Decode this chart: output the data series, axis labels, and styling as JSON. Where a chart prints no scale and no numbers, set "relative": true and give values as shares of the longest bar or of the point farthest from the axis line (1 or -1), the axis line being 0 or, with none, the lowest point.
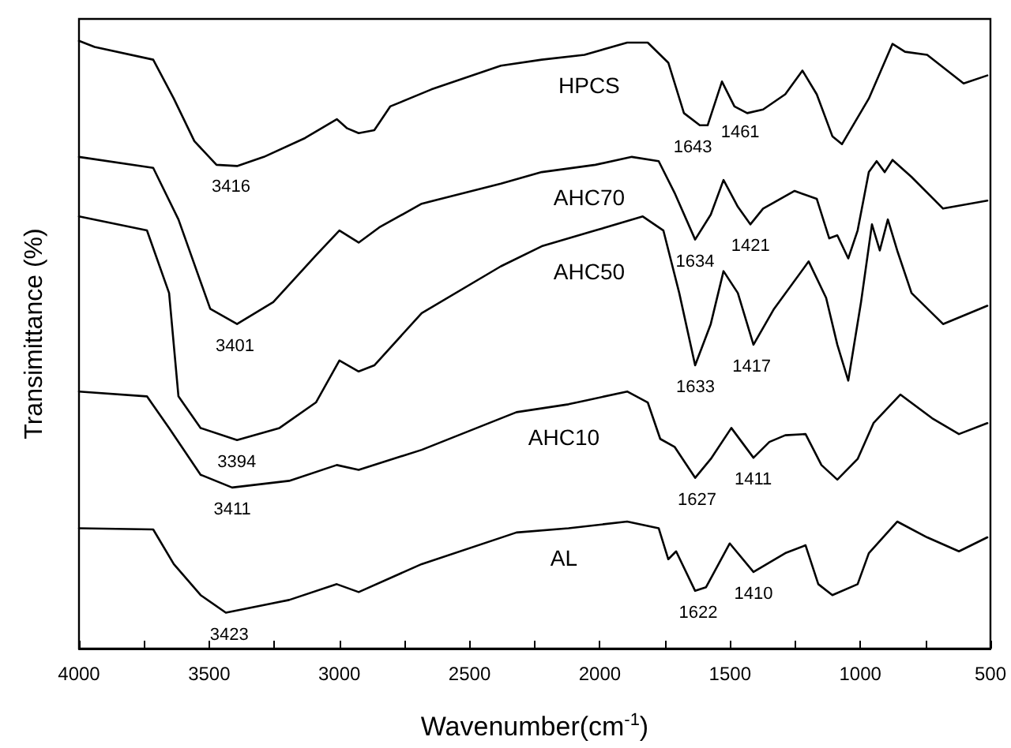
{
  "chart_data": {
    "type": "line",
    "relative": true,
    "xlabel": "Wavenumber(cm$^{-1}$)",
    "ylabel": "Transimittance (%)",
    "xlim": [
      4000,
      500
    ],
    "xticks": [
      4000,
      {
        "value": 3750,
        "label": null
      },
      3500,
      {
        "value": 3250,
        "label": null
      },
      3000,
      {
        "value": 2750,
        "label": null
      },
      2500,
      {
        "value": 2250,
        "label": null
      },
      2000,
      {
        "value": 1750,
        "label": null
      },
      1500,
      {
        "value": 1250,
        "label": null
      },
      1000,
      {
        "value": 750,
        "label": null
      },
      500
    ],
    "grid": false,
    "legend": false,
    "marker": "none",
    "line_style": "solid",
    "series": [
      {
        "name": "HPCS",
        "color": "#000000",
        "x": [
          4000,
          3940,
          3715,
          3636,
          3557,
          3472,
          3393,
          3290,
          3132,
          3010,
          2970,
          2926,
          2866,
          2805,
          2647,
          2380,
          2223,
          2059,
          1895,
          1816,
          1737,
          1677,
          1616,
          1586,
          1531,
          1483,
          1434,
          1373,
          1288,
          1222,
          1167,
          1107,
          1070,
          967,
          876,
          828,
          743,
          603,
          512
        ],
        "values": [
          1,
          0.99,
          0.969,
          0.905,
          0.835,
          0.796,
          0.794,
          0.809,
          0.84,
          0.871,
          0.856,
          0.848,
          0.853,
          0.892,
          0.92,
          0.959,
          0.969,
          0.977,
          0.997,
          0.997,
          0.964,
          0.881,
          0.861,
          0.861,
          0.933,
          0.892,
          0.881,
          0.887,
          0.912,
          0.951,
          0.912,
          0.843,
          0.83,
          0.905,
          0.995,
          0.982,
          0.977,
          0.93,
          0.943
        ]
      },
      {
        "name": "AHC70",
        "color": "#000000",
        "x": [
          4000,
          3715,
          3618,
          3496,
          3393,
          3254,
          3090,
          3000,
          2926,
          2847,
          2684,
          2380,
          2223,
          2017,
          1877,
          1774,
          1713,
          1634,
          1574,
          1525,
          1470,
          1422,
          1373,
          1252,
          1167,
          1119,
          1088,
          1046,
          1010,
          967,
          937,
          906,
          876,
          803,
          682,
          512
        ],
        "values": [
          0.809,
          0.791,
          0.706,
          0.559,
          0.534,
          0.57,
          0.647,
          0.688,
          0.668,
          0.693,
          0.732,
          0.765,
          0.784,
          0.796,
          0.809,
          0.802,
          0.75,
          0.673,
          0.714,
          0.771,
          0.727,
          0.698,
          0.724,
          0.753,
          0.74,
          0.675,
          0.68,
          0.642,
          0.688,
          0.784,
          0.802,
          0.784,
          0.804,
          0.776,
          0.724,
          0.737
        ]
      },
      {
        "name": "AHC50",
        "color": "#000000",
        "x": [
          4000,
          3739,
          3654,
          3618,
          3533,
          3393,
          3230,
          3090,
          3000,
          2926,
          2866,
          2684,
          2380,
          2223,
          2017,
          1835,
          1756,
          1695,
          1634,
          1574,
          1525,
          1470,
          1410,
          1331,
          1198,
          1131,
          1088,
          1046,
          997,
          955,
          925,
          894,
          858,
          803,
          682,
          512
        ],
        "values": [
          0.711,
          0.688,
          0.585,
          0.415,
          0.363,
          0.343,
          0.363,
          0.405,
          0.474,
          0.456,
          0.466,
          0.552,
          0.629,
          0.662,
          0.688,
          0.711,
          0.688,
          0.585,
          0.466,
          0.534,
          0.621,
          0.585,
          0.5,
          0.559,
          0.637,
          0.577,
          0.5,
          0.441,
          0.57,
          0.698,
          0.655,
          0.706,
          0.655,
          0.585,
          0.534,
          0.564
        ]
      },
      {
        "name": "AHC10",
        "color": "#000000",
        "x": [
          4000,
          3739,
          3654,
          3533,
          3412,
          3193,
          3010,
          2926,
          2684,
          2320,
          2120,
          1895,
          1816,
          1768,
          1713,
          1634,
          1574,
          1495,
          1410,
          1349,
          1288,
          1210,
          1149,
          1088,
          1010,
          949,
          846,
          724,
          621,
          512
        ],
        "values": [
          0.423,
          0.415,
          0.363,
          0.286,
          0.265,
          0.276,
          0.302,
          0.294,
          0.327,
          0.389,
          0.402,
          0.423,
          0.405,
          0.345,
          0.332,
          0.281,
          0.312,
          0.363,
          0.314,
          0.34,
          0.351,
          0.353,
          0.302,
          0.278,
          0.312,
          0.371,
          0.418,
          0.379,
          0.353,
          0.371
        ]
      },
      {
        "name": "AL",
        "color": "#000000",
        "x": [
          4000,
          3715,
          3636,
          3533,
          3436,
          3193,
          3010,
          2926,
          2684,
          2320,
          2120,
          1895,
          1774,
          1737,
          1707,
          1634,
          1592,
          1501,
          1410,
          1288,
          1210,
          1161,
          1107,
          1010,
          967,
          858,
          743,
          621,
          512
        ],
        "values": [
          0.198,
          0.196,
          0.139,
          0.088,
          0.059,
          0.08,
          0.106,
          0.093,
          0.139,
          0.191,
          0.198,
          0.209,
          0.198,
          0.147,
          0.16,
          0.095,
          0.101,
          0.173,
          0.126,
          0.157,
          0.17,
          0.106,
          0.088,
          0.106,
          0.157,
          0.209,
          0.183,
          0.16,
          0.183
        ]
      }
    ],
    "annotations": [
      {
        "text": "3416",
        "x": 3416,
        "y": 0.796
      },
      {
        "text": "1643",
        "x": 1643,
        "y": 0.861
      },
      {
        "text": "1461",
        "x": 1461,
        "y": 0.885
      },
      {
        "text": "3401",
        "x": 3401,
        "y": 0.534
      },
      {
        "text": "1634",
        "x": 1634,
        "y": 0.673
      },
      {
        "text": "1421",
        "x": 1421,
        "y": 0.698
      },
      {
        "text": "3394",
        "x": 3394,
        "y": 0.343
      },
      {
        "text": "1633",
        "x": 1633,
        "y": 0.466
      },
      {
        "text": "1417",
        "x": 1417,
        "y": 0.5
      },
      {
        "text": "3411",
        "x": 3411,
        "y": 0.265
      },
      {
        "text": "1627",
        "x": 1627,
        "y": 0.281
      },
      {
        "text": "1411",
        "x": 1411,
        "y": 0.314
      },
      {
        "text": "3423",
        "x": 3423,
        "y": 0.059
      },
      {
        "text": "1622",
        "x": 1622,
        "y": 0.095
      },
      {
        "text": "1410",
        "x": 1410,
        "y": 0.126
      }
    ]
  }
}
